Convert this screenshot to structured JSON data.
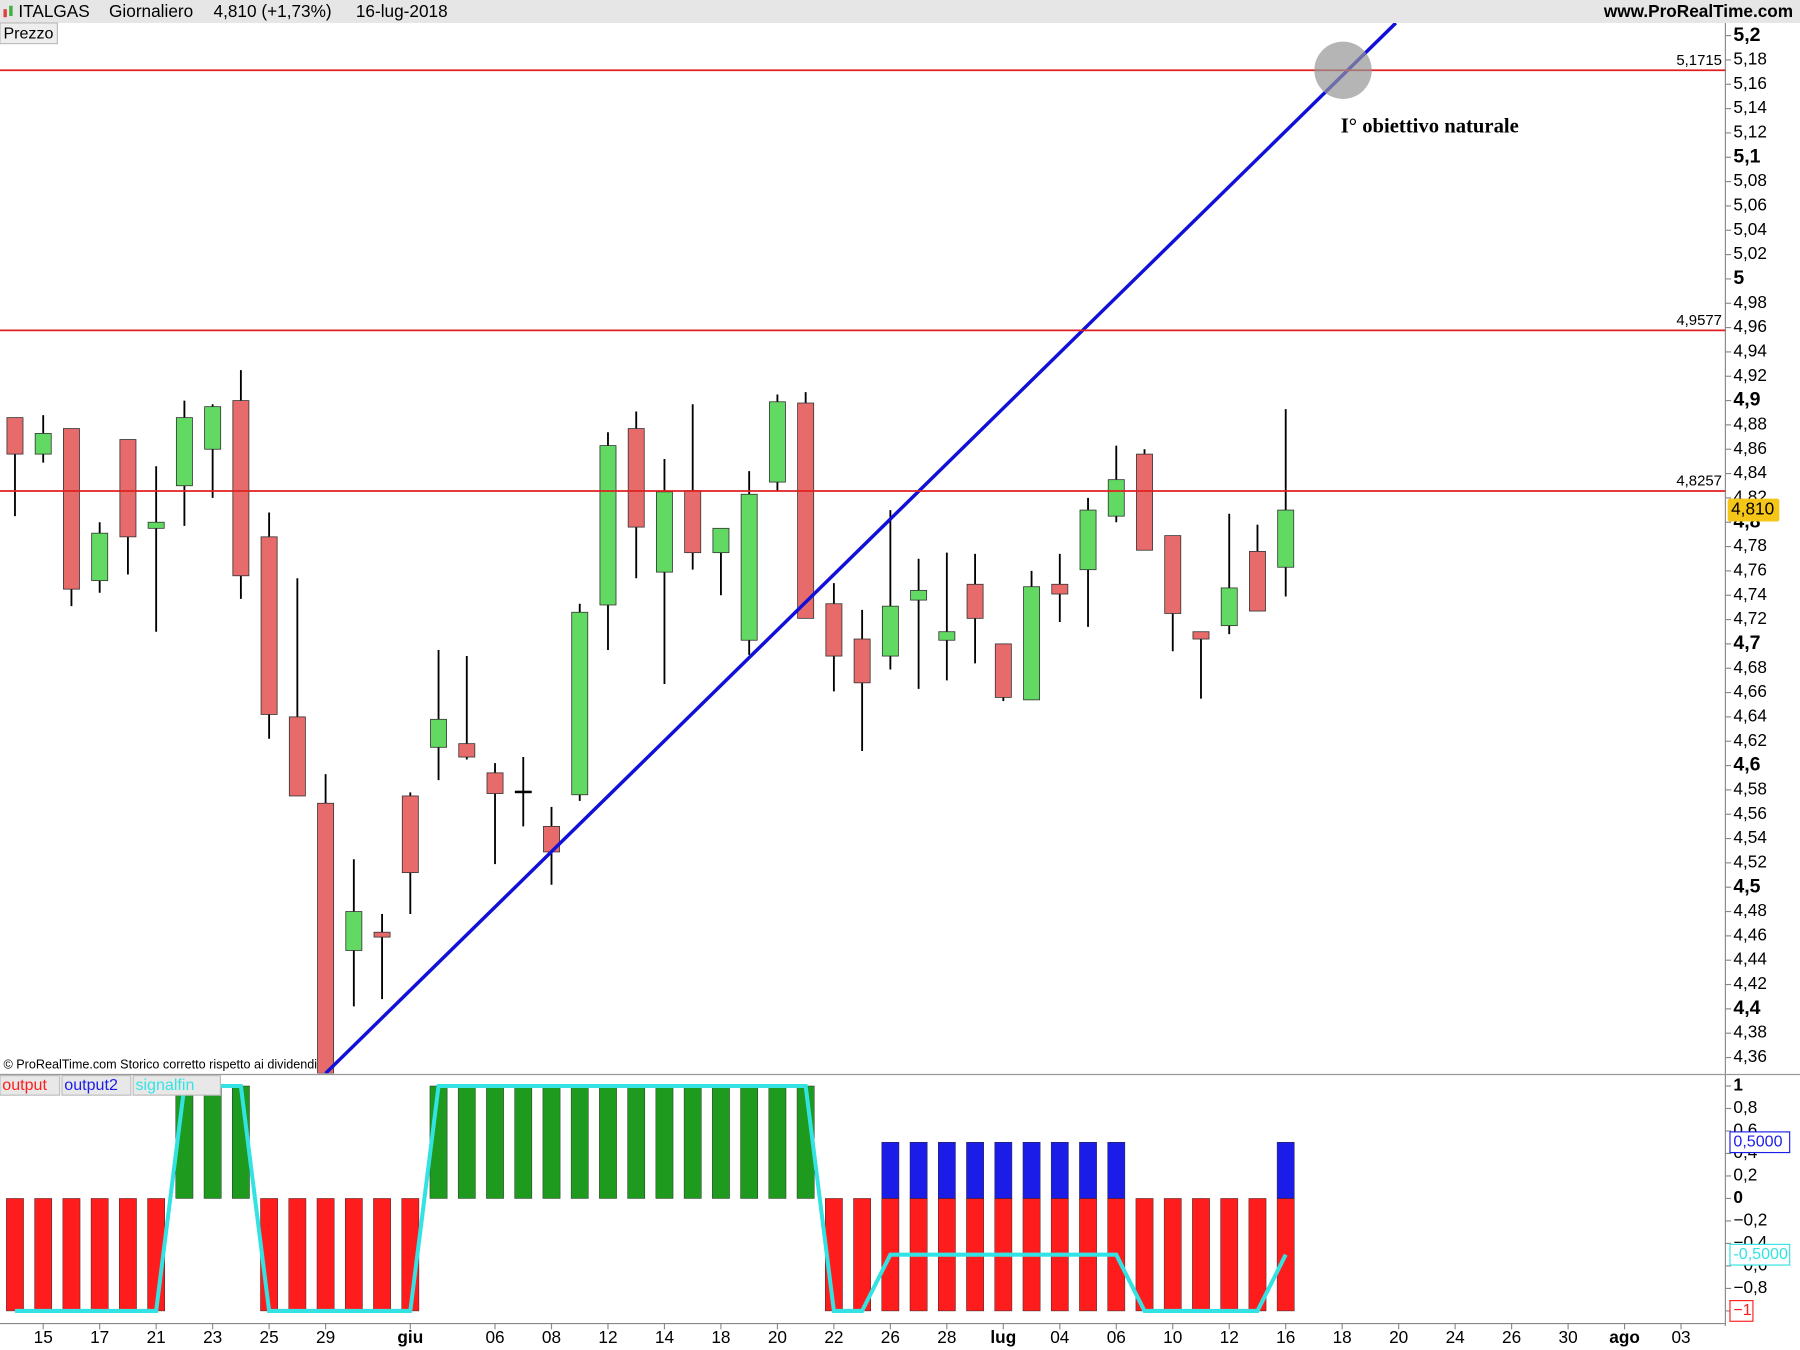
{
  "header": {
    "symbol": "ITALGAS",
    "period": "Giornaliero",
    "last": "4,810 (+1,73%)",
    "date": "16-lug-2018",
    "site": "www.ProRealTime.com",
    "panel": "Prezzo",
    "footer": "© ProRealTime.com  Storico corretto rispetto ai dividendi"
  },
  "chart_data": [
    {
      "type": "candlestick",
      "up_color": "#62d962",
      "down_color": "#e86b6b",
      "x": [
        0,
        1,
        2,
        3,
        4,
        5,
        6,
        7,
        8,
        9,
        10,
        11,
        12,
        13,
        14,
        15,
        16,
        17,
        18,
        19,
        20,
        21,
        22,
        23,
        24,
        25,
        26,
        27,
        28,
        29,
        30,
        31,
        32,
        33,
        34,
        35,
        36,
        37,
        38,
        39,
        40,
        41,
        42,
        43,
        44,
        45
      ],
      "open": [
        4.886,
        4.856,
        4.877,
        4.752,
        4.868,
        4.795,
        4.83,
        4.86,
        4.9,
        4.788,
        4.64,
        4.569,
        4.448,
        4.463,
        4.575,
        4.615,
        4.618,
        4.594,
        4.579,
        4.55,
        4.576,
        4.732,
        4.877,
        4.759,
        4.826,
        4.775,
        4.703,
        4.833,
        4.898,
        4.733,
        4.704,
        4.69,
        4.736,
        4.703,
        4.749,
        4.7,
        4.654,
        4.749,
        4.761,
        4.805,
        4.856,
        4.789,
        4.71,
        4.715,
        4.776,
        4.763
      ],
      "high": [
        4.886,
        4.888,
        4.877,
        4.8,
        4.868,
        4.846,
        4.9,
        4.897,
        4.925,
        4.808,
        4.754,
        4.593,
        4.523,
        4.478,
        4.578,
        4.695,
        4.69,
        4.602,
        4.607,
        4.566,
        4.733,
        4.874,
        4.891,
        4.852,
        4.897,
        4.795,
        4.842,
        4.905,
        4.907,
        4.75,
        4.728,
        4.81,
        4.77,
        4.775,
        4.774,
        4.7,
        4.76,
        4.774,
        4.82,
        4.863,
        4.86,
        4.789,
        4.71,
        4.807,
        4.798,
        4.893
      ],
      "low": [
        4.805,
        4.849,
        4.731,
        4.742,
        4.757,
        4.71,
        4.797,
        4.82,
        4.737,
        4.622,
        4.575,
        4.347,
        4.402,
        4.408,
        4.478,
        4.588,
        4.605,
        4.519,
        4.55,
        4.502,
        4.571,
        4.695,
        4.754,
        4.667,
        4.761,
        4.74,
        4.691,
        4.826,
        4.721,
        4.661,
        4.612,
        4.679,
        4.663,
        4.67,
        4.684,
        4.653,
        4.654,
        4.718,
        4.714,
        4.8,
        4.777,
        4.694,
        4.655,
        4.708,
        4.727,
        4.739
      ],
      "close": [
        4.856,
        4.873,
        4.745,
        4.791,
        4.788,
        4.8,
        4.886,
        4.895,
        4.756,
        4.642,
        4.575,
        4.347,
        4.48,
        4.459,
        4.512,
        4.638,
        4.607,
        4.577,
        4.579,
        4.529,
        4.726,
        4.863,
        4.796,
        4.825,
        4.775,
        4.795,
        4.823,
        4.899,
        4.721,
        4.69,
        4.668,
        4.731,
        4.744,
        4.71,
        4.721,
        4.656,
        4.747,
        4.741,
        4.81,
        4.835,
        4.777,
        4.725,
        4.704,
        4.746,
        4.727,
        4.81
      ],
      "value_labels": [
        null,
        null,
        null,
        null,
        null,
        null,
        null,
        null,
        null,
        null,
        null,
        null,
        null,
        null,
        null,
        null,
        null,
        null,
        null,
        null,
        null,
        null,
        null,
        null,
        null,
        null,
        null,
        null,
        null,
        null,
        null,
        null,
        null,
        null,
        null,
        null,
        null,
        null,
        null,
        null,
        null,
        null,
        null,
        null,
        null,
        "4,810"
      ],
      "xlim": [
        -0.53,
        60.57
      ],
      "ylim": [
        4.347,
        5.2104
      ],
      "yticks": [
        {
          "value": 5.2,
          "label": "5,2"
        },
        {
          "value": 5.18,
          "label": "5,18"
        },
        {
          "value": 5.16,
          "label": "5,16"
        },
        {
          "value": 5.14,
          "label": "5,14"
        },
        {
          "value": 5.12,
          "label": "5,12"
        },
        {
          "value": 5.1,
          "label": "5,1"
        },
        {
          "value": 5.08,
          "label": "5,08"
        },
        {
          "value": 5.06,
          "label": "5,06"
        },
        {
          "value": 5.04,
          "label": "5,04"
        },
        {
          "value": 5.02,
          "label": "5,02"
        },
        5,
        {
          "value": 4.98,
          "label": "4,98"
        },
        {
          "value": 4.96,
          "label": "4,96"
        },
        {
          "value": 4.94,
          "label": "4,94"
        },
        {
          "value": 4.92,
          "label": "4,92"
        },
        {
          "value": 4.9,
          "label": "4,9"
        },
        {
          "value": 4.88,
          "label": "4,88"
        },
        {
          "value": 4.86,
          "label": "4,86"
        },
        {
          "value": 4.84,
          "label": "4,84"
        },
        {
          "value": 4.82,
          "label": "4,82"
        },
        {
          "value": 4.8,
          "label": "4,8"
        },
        {
          "value": 4.78,
          "label": "4,78"
        },
        {
          "value": 4.76,
          "label": "4,76"
        },
        {
          "value": 4.74,
          "label": "4,74"
        },
        {
          "value": 4.72,
          "label": "4,72"
        },
        {
          "value": 4.7,
          "label": "4,7"
        },
        {
          "value": 4.68,
          "label": "4,68"
        },
        {
          "value": 4.66,
          "label": "4,66"
        },
        {
          "value": 4.64,
          "label": "4,64"
        },
        {
          "value": 4.62,
          "label": "4,62"
        },
        {
          "value": 4.6,
          "label": "4,6"
        },
        {
          "value": 4.58,
          "label": "4,58"
        },
        {
          "value": 4.56,
          "label": "4,56"
        },
        {
          "value": 4.54,
          "label": "4,54"
        },
        {
          "value": 4.52,
          "label": "4,52"
        },
        {
          "value": 4.5,
          "label": "4,5"
        },
        {
          "value": 4.48,
          "label": "4,48"
        },
        {
          "value": 4.46,
          "label": "4,46"
        },
        {
          "value": 4.44,
          "label": "4,44"
        },
        {
          "value": 4.42,
          "label": "4,42"
        },
        {
          "value": 4.4,
          "label": "4,4"
        },
        {
          "value": 4.38,
          "label": "4,38"
        },
        {
          "value": 4.36,
          "label": "4,36"
        }
      ],
      "hlines": [
        {
          "value": 5.1715,
          "label": "5,1715",
          "color": "#e02020"
        },
        {
          "value": 4.9577,
          "label": "4,9577",
          "color": "#e02020"
        },
        {
          "value": 4.8257,
          "label": "4,8257",
          "color": "#e02020"
        }
      ],
      "trendline": {
        "color": "#1010d8",
        "points": [
          [
            11,
            4.347
          ],
          [
            48.9,
            5.2104
          ]
        ]
      },
      "annotation": {
        "text": "I° obiettivo naturale",
        "x": 47.03,
        "y": 5.1715
      }
    },
    {
      "type": "histogram-line",
      "x": [
        0,
        1,
        2,
        3,
        4,
        5,
        6,
        7,
        8,
        9,
        10,
        11,
        12,
        13,
        14,
        15,
        16,
        17,
        18,
        19,
        20,
        21,
        22,
        23,
        24,
        25,
        26,
        27,
        28,
        29,
        30,
        31,
        32,
        33,
        34,
        35,
        36,
        37,
        38,
        39,
        40,
        41,
        42,
        43,
        44,
        45
      ],
      "series": [
        {
          "name": "output",
          "color": "#ff1c1c",
          "positive_color": "#1e9a1e",
          "values": [
            -1,
            -1,
            -1,
            -1,
            -1,
            -1,
            1,
            1,
            1,
            -1,
            -1,
            -1,
            -1,
            -1,
            -1,
            1,
            1,
            1,
            1,
            1,
            1,
            1,
            1,
            1,
            1,
            1,
            1,
            1,
            1,
            -1,
            -1,
            -1,
            -1,
            -1,
            -1,
            -1,
            -1,
            -1,
            -1,
            -1,
            -1,
            -1,
            -1,
            -1,
            -1,
            -1
          ],
          "value_labels": [
            null,
            null,
            null,
            null,
            null,
            null,
            null,
            null,
            null,
            null,
            null,
            null,
            null,
            null,
            null,
            null,
            null,
            null,
            null,
            null,
            null,
            null,
            null,
            null,
            null,
            null,
            null,
            null,
            null,
            null,
            null,
            null,
            null,
            null,
            null,
            null,
            null,
            null,
            null,
            null,
            null,
            null,
            null,
            null,
            null,
            "−1"
          ]
        },
        {
          "name": "output2",
          "color": "#1c1ce8",
          "values": [
            0,
            0,
            0,
            0,
            0,
            0,
            0,
            0,
            0,
            0,
            0,
            0,
            0,
            0,
            0,
            0,
            0,
            0,
            0,
            0,
            0,
            0,
            0,
            0,
            0,
            0,
            0,
            0,
            0,
            0,
            0,
            0.5,
            0.5,
            0.5,
            0.5,
            0.5,
            0.5,
            0.5,
            0.5,
            0.5,
            0,
            0,
            0,
            0,
            0,
            0.5
          ],
          "value_labels": [
            null,
            null,
            null,
            null,
            null,
            null,
            null,
            null,
            null,
            null,
            null,
            null,
            null,
            null,
            null,
            null,
            null,
            null,
            null,
            null,
            null,
            null,
            null,
            null,
            null,
            null,
            null,
            null,
            null,
            null,
            null,
            null,
            null,
            null,
            null,
            null,
            null,
            null,
            null,
            null,
            null,
            null,
            null,
            null,
            null,
            "0,5000"
          ]
        },
        {
          "name": "signalfin",
          "color": "#33e3e3",
          "values": [
            -1,
            -1,
            -1,
            -1,
            -1,
            -1,
            1,
            1,
            1,
            -1,
            -1,
            -1,
            -1,
            -1,
            -1,
            1,
            1,
            1,
            1,
            1,
            1,
            1,
            1,
            1,
            1,
            1,
            1,
            1,
            1,
            -1,
            -1,
            -0.5,
            -0.5,
            -0.5,
            -0.5,
            -0.5,
            -0.5,
            -0.5,
            -0.5,
            -0.5,
            -1,
            -1,
            -1,
            -1,
            -1,
            -0.5
          ],
          "value_labels": [
            null,
            null,
            null,
            null,
            null,
            null,
            null,
            null,
            null,
            null,
            null,
            null,
            null,
            null,
            null,
            null,
            null,
            null,
            null,
            null,
            null,
            null,
            null,
            null,
            null,
            null,
            null,
            null,
            null,
            null,
            null,
            null,
            null,
            null,
            null,
            null,
            null,
            null,
            null,
            null,
            null,
            null,
            null,
            null,
            null,
            "-0,5000"
          ]
        }
      ],
      "xlim": [
        -0.53,
        60.57
      ],
      "ylim": [
        -1.082,
        1.092
      ],
      "yticks": [
        1,
        {
          "value": 0.8,
          "label": "0,8"
        },
        {
          "value": 0.6,
          "label": "0,6"
        },
        {
          "value": 0.4,
          "label": "0,4"
        },
        {
          "value": 0.2,
          "label": "0,2"
        },
        0,
        {
          "value": -0.2,
          "label": "−0,2"
        },
        {
          "value": -0.4,
          "label": "−0,4"
        },
        {
          "value": -0.6,
          "label": "−0,6"
        },
        {
          "value": -0.8,
          "label": "−0,8"
        },
        {
          "value": -1,
          "label": "−1"
        }
      ],
      "xticks": [
        {
          "value": 1,
          "label": "15"
        },
        {
          "value": 3,
          "label": "17"
        },
        {
          "value": 5,
          "label": "21"
        },
        {
          "value": 7,
          "label": "23"
        },
        {
          "value": 9,
          "label": "25"
        },
        {
          "value": 11,
          "label": "29"
        },
        {
          "value": 14,
          "label": "giu"
        },
        {
          "value": 17,
          "label": "06"
        },
        {
          "value": 19,
          "label": "08"
        },
        {
          "value": 21,
          "label": "12"
        },
        {
          "value": 23,
          "label": "14"
        },
        {
          "value": 25,
          "label": "18"
        },
        {
          "value": 27,
          "label": "20"
        },
        {
          "value": 29,
          "label": "22"
        },
        {
          "value": 31,
          "label": "26"
        },
        {
          "value": 33,
          "label": "28"
        },
        {
          "value": 35,
          "label": "lug"
        },
        {
          "value": 37,
          "label": "04"
        },
        {
          "value": 39,
          "label": "06"
        },
        {
          "value": 41,
          "label": "10"
        },
        {
          "value": 43,
          "label": "12"
        },
        {
          "value": 45,
          "label": "16"
        },
        {
          "value": 47,
          "label": "18"
        },
        {
          "value": 49,
          "label": "20"
        },
        {
          "value": 51,
          "label": "24"
        },
        {
          "value": 53,
          "label": "26"
        },
        {
          "value": 55,
          "label": "30"
        },
        {
          "value": 57,
          "label": "ago"
        },
        {
          "value": 59,
          "label": "03"
        }
      ]
    }
  ]
}
